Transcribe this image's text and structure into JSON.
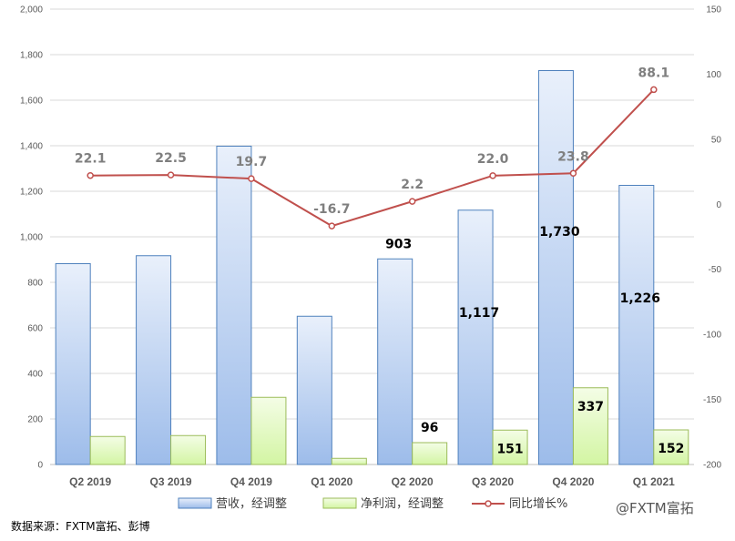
{
  "chart_data": {
    "type": "bar",
    "categories": [
      "Q2 2019",
      "Q3 2019",
      "Q4 2019",
      "Q1 2020",
      "Q2 2020",
      "Q3 2020",
      "Q4 2020",
      "Q1 2021"
    ],
    "series": [
      {
        "name": "营收，经调整",
        "type": "bar",
        "axis": "left",
        "values": [
          882,
          917,
          1398,
          651,
          903,
          1117,
          1730,
          1226
        ],
        "data_labels": [
          "",
          "",
          "",
          "",
          "903",
          "1,117",
          "1,730",
          "1,226"
        ],
        "color": "#8eb4e3"
      },
      {
        "name": "净利润，经调整",
        "type": "bar",
        "axis": "left",
        "values": [
          123,
          127,
          295,
          27,
          96,
          151,
          337,
          152
        ],
        "data_labels": [
          "",
          "",
          "",
          "",
          "96",
          "151",
          "337",
          "152"
        ],
        "color": "#d7f5a8"
      },
      {
        "name": "同比增长%",
        "type": "line",
        "axis": "right",
        "values": [
          22.1,
          22.5,
          19.7,
          -16.7,
          2.2,
          22.0,
          23.8,
          88.1
        ],
        "data_labels": [
          "22.1",
          "22.5",
          "19.7",
          "-16.7",
          "2.2",
          "22.0",
          "23.8",
          "88.1"
        ],
        "color": "#c0504d"
      }
    ],
    "ylim": [
      0,
      2000
    ],
    "y_ticks": [
      "0",
      "200",
      "400",
      "600",
      "800",
      "1,000",
      "1,200",
      "1,400",
      "1,600",
      "1,800",
      "2,000"
    ],
    "y2lim": [
      -200,
      150
    ],
    "y2_ticks": [
      "-200",
      "-150",
      "-100",
      "-50",
      "0",
      "50",
      "100",
      "150"
    ],
    "grid": true,
    "legend": "bottom"
  },
  "source_note": "数据来源：FXTM富拓、彭博",
  "watermark": "@FXTM富拓"
}
